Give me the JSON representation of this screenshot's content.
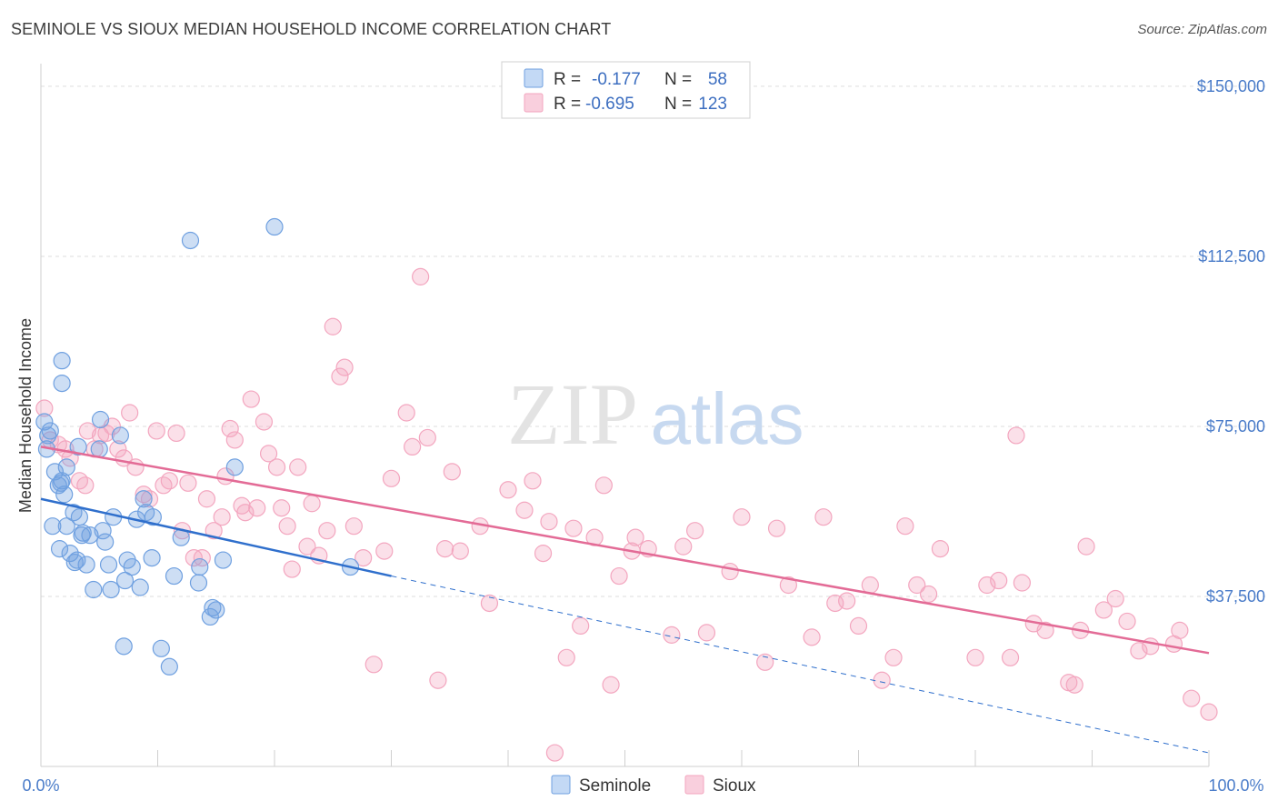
{
  "title": "SEMINOLE VS SIOUX MEDIAN HOUSEHOLD INCOME CORRELATION CHART",
  "source": "Source: ZipAtlas.com",
  "watermark": {
    "zip": "ZIP",
    "atlas": "atlas"
  },
  "chart_data": {
    "type": "scatter",
    "ylabel": "Median Household Income",
    "xlabel": "",
    "xlim": [
      0,
      100
    ],
    "ylim": [
      0,
      155000
    ],
    "x_tick_labels": {
      "min": "0.0%",
      "max": "100.0%"
    },
    "y_ticks": [
      {
        "value": 37500,
        "label": "$37,500"
      },
      {
        "value": 75000,
        "label": "$75,000"
      },
      {
        "value": 112500,
        "label": "$112,500"
      },
      {
        "value": 150000,
        "label": "$150,000"
      }
    ],
    "grid": true,
    "legend_position": "top-center",
    "legend": [
      {
        "r_label": "R =",
        "r_value": "-0.177",
        "n_label": "N =",
        "n_value": "58"
      },
      {
        "r_label": "R =",
        "r_value": "-0.695",
        "n_label": "N =",
        "n_value": "123"
      }
    ],
    "series": [
      {
        "name": "Seminole",
        "color": "#6fa0e0",
        "line_color": "#2f6fcc",
        "trend": {
          "x0": 0,
          "y0": 59000,
          "x1": 30,
          "y1": 42000,
          "dash_to_x": 100,
          "dash_to_y": 3000
        },
        "points": [
          [
            0.3,
            76000
          ],
          [
            0.6,
            73000
          ],
          [
            0.5,
            70000
          ],
          [
            0.8,
            74000
          ],
          [
            1.2,
            65000
          ],
          [
            1.5,
            62000
          ],
          [
            1.8,
            63000
          ],
          [
            1.7,
            62500
          ],
          [
            1.0,
            53000
          ],
          [
            1.6,
            48000
          ],
          [
            2.0,
            60000
          ],
          [
            2.2,
            53000
          ],
          [
            2.5,
            47000
          ],
          [
            2.8,
            56000
          ],
          [
            2.9,
            45000
          ],
          [
            3.1,
            45500
          ],
          [
            3.3,
            55000
          ],
          [
            3.5,
            51000
          ],
          [
            3.6,
            51500
          ],
          [
            3.9,
            44500
          ],
          [
            4.2,
            51000
          ],
          [
            4.5,
            39000
          ],
          [
            5.0,
            70000
          ],
          [
            5.1,
            76500
          ],
          [
            5.3,
            52000
          ],
          [
            5.5,
            49500
          ],
          [
            5.8,
            44500
          ],
          [
            6.0,
            39000
          ],
          [
            6.2,
            55000
          ],
          [
            6.8,
            73000
          ],
          [
            7.2,
            41000
          ],
          [
            7.4,
            45500
          ],
          [
            7.8,
            44000
          ],
          [
            8.2,
            54500
          ],
          [
            8.5,
            39500
          ],
          [
            8.8,
            59000
          ],
          [
            9.0,
            56000
          ],
          [
            9.5,
            46000
          ],
          [
            10.3,
            26000
          ],
          [
            11.0,
            22000
          ],
          [
            11.4,
            42000
          ],
          [
            12.0,
            50500
          ],
          [
            12.8,
            116000
          ],
          [
            13.5,
            40500
          ],
          [
            13.6,
            44000
          ],
          [
            14.5,
            33000
          ],
          [
            14.7,
            35000
          ],
          [
            15.0,
            34500
          ],
          [
            15.6,
            45500
          ],
          [
            16.6,
            66000
          ],
          [
            20.0,
            119000
          ],
          [
            26.5,
            44000
          ],
          [
            1.8,
            89500
          ],
          [
            1.8,
            84500
          ],
          [
            2.2,
            66000
          ],
          [
            7.1,
            26500
          ],
          [
            3.2,
            70500
          ],
          [
            9.6,
            55000
          ]
        ]
      },
      {
        "name": "Sioux",
        "color": "#f3a6bf",
        "line_color": "#e36b96",
        "trend": {
          "x0": 0,
          "y0": 70500,
          "x1": 100,
          "y1": 25000
        },
        "points": [
          [
            0.3,
            79000
          ],
          [
            0.8,
            72000
          ],
          [
            1.5,
            71000
          ],
          [
            2.1,
            70000
          ],
          [
            2.5,
            68000
          ],
          [
            3.3,
            63000
          ],
          [
            3.8,
            62000
          ],
          [
            4.0,
            74000
          ],
          [
            4.6,
            70000
          ],
          [
            5.1,
            73000
          ],
          [
            5.6,
            73500
          ],
          [
            6.1,
            75000
          ],
          [
            6.6,
            70000
          ],
          [
            7.1,
            68000
          ],
          [
            7.6,
            78000
          ],
          [
            8.1,
            66000
          ],
          [
            8.8,
            60000
          ],
          [
            9.3,
            59000
          ],
          [
            9.9,
            74000
          ],
          [
            10.5,
            62000
          ],
          [
            11.0,
            63000
          ],
          [
            11.6,
            73500
          ],
          [
            12.1,
            52000
          ],
          [
            12.6,
            62500
          ],
          [
            13.1,
            46000
          ],
          [
            13.8,
            46000
          ],
          [
            14.2,
            59000
          ],
          [
            14.8,
            52000
          ],
          [
            15.5,
            55000
          ],
          [
            15.8,
            64000
          ],
          [
            16.2,
            74500
          ],
          [
            16.6,
            72000
          ],
          [
            17.2,
            57500
          ],
          [
            17.5,
            56000
          ],
          [
            18.0,
            81000
          ],
          [
            18.5,
            57000
          ],
          [
            19.1,
            76000
          ],
          [
            19.5,
            69000
          ],
          [
            20.2,
            66000
          ],
          [
            20.6,
            57000
          ],
          [
            21.1,
            53000
          ],
          [
            21.5,
            43500
          ],
          [
            22.0,
            66000
          ],
          [
            22.8,
            48500
          ],
          [
            23.2,
            58000
          ],
          [
            23.8,
            46500
          ],
          [
            24.5,
            52000
          ],
          [
            25.0,
            97000
          ],
          [
            25.6,
            86000
          ],
          [
            26.0,
            88000
          ],
          [
            26.8,
            53000
          ],
          [
            27.6,
            46000
          ],
          [
            28.5,
            22500
          ],
          [
            29.4,
            47500
          ],
          [
            30.0,
            63500
          ],
          [
            31.3,
            78000
          ],
          [
            31.8,
            70500
          ],
          [
            32.5,
            108000
          ],
          [
            33.1,
            72500
          ],
          [
            34.0,
            19000
          ],
          [
            34.6,
            48000
          ],
          [
            35.2,
            65000
          ],
          [
            35.9,
            47500
          ],
          [
            37.6,
            53000
          ],
          [
            38.4,
            36000
          ],
          [
            40.0,
            61000
          ],
          [
            41.4,
            56500
          ],
          [
            42.1,
            63000
          ],
          [
            43.0,
            47000
          ],
          [
            43.5,
            54000
          ],
          [
            44.0,
            3000
          ],
          [
            45.0,
            24000
          ],
          [
            45.6,
            52500
          ],
          [
            46.2,
            31000
          ],
          [
            47.4,
            50500
          ],
          [
            48.2,
            62000
          ],
          [
            48.8,
            18000
          ],
          [
            49.5,
            42000
          ],
          [
            50.6,
            47500
          ],
          [
            50.9,
            50500
          ],
          [
            52.0,
            48000
          ],
          [
            54.0,
            29000
          ],
          [
            55.0,
            48500
          ],
          [
            56.0,
            52000
          ],
          [
            57.0,
            29500
          ],
          [
            59.0,
            43000
          ],
          [
            60.0,
            55000
          ],
          [
            62.0,
            23000
          ],
          [
            63.0,
            52500
          ],
          [
            64.0,
            40000
          ],
          [
            66.0,
            28500
          ],
          [
            67.0,
            55000
          ],
          [
            68.0,
            36000
          ],
          [
            69.0,
            36500
          ],
          [
            70.0,
            31000
          ],
          [
            71.0,
            40000
          ],
          [
            72.0,
            19000
          ],
          [
            73.0,
            24000
          ],
          [
            74.0,
            53000
          ],
          [
            75.0,
            40000
          ],
          [
            76.0,
            38000
          ],
          [
            77.0,
            48000
          ],
          [
            80.0,
            24000
          ],
          [
            81.0,
            40000
          ],
          [
            82.0,
            41000
          ],
          [
            83.0,
            24000
          ],
          [
            83.5,
            73000
          ],
          [
            84.0,
            40500
          ],
          [
            85.0,
            31500
          ],
          [
            86.0,
            30000
          ],
          [
            88.0,
            18500
          ],
          [
            88.5,
            18000
          ],
          [
            89.0,
            30000
          ],
          [
            89.5,
            48500
          ],
          [
            91.0,
            34500
          ],
          [
            92.0,
            37000
          ],
          [
            93.0,
            32000
          ],
          [
            94.0,
            25500
          ],
          [
            95.0,
            26500
          ],
          [
            97.0,
            27000
          ],
          [
            97.5,
            30000
          ],
          [
            98.5,
            15000
          ],
          [
            100.0,
            12000
          ]
        ]
      }
    ]
  }
}
